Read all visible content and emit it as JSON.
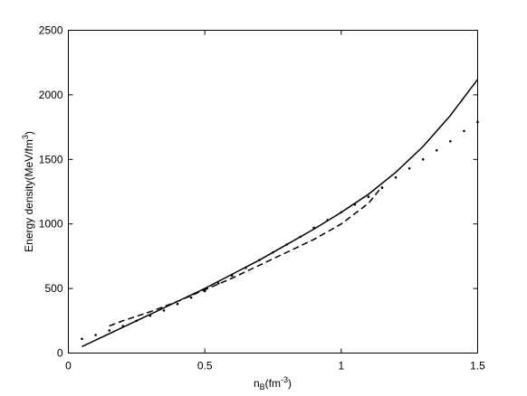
{
  "chart_data": {
    "type": "line",
    "x_label": [
      "n",
      "B",
      "(fm",
      "-3",
      ")"
    ],
    "y_label": [
      "Energy density(MeV/fm",
      "3",
      ")"
    ],
    "xlim": [
      0,
      1.5
    ],
    "xticks": [
      0,
      0.5,
      1,
      1.5
    ],
    "ylim": [
      0,
      2500
    ],
    "yticks": [
      0,
      500,
      1000,
      1500,
      2000,
      2500
    ],
    "series": [
      {
        "style": "solid",
        "color": "#000000",
        "x": [
          0.05,
          0.1,
          0.2,
          0.3,
          0.4,
          0.5,
          0.6,
          0.7,
          0.8,
          0.9,
          1.0,
          1.1,
          1.2,
          1.3,
          1.4,
          1.5
        ],
        "values": [
          50,
          100,
          200,
          300,
          400,
          500,
          610,
          720,
          840,
          960,
          1090,
          1230,
          1400,
          1600,
          1840,
          2120
        ]
      },
      {
        "style": "dashed",
        "color": "#000000",
        "x": [
          0.15,
          0.2,
          0.3,
          0.4,
          0.5,
          0.6,
          0.7,
          0.8,
          0.9,
          1.0,
          1.1,
          1.15
        ],
        "values": [
          210,
          250,
          320,
          400,
          490,
          580,
          680,
          780,
          880,
          1000,
          1160,
          1290
        ]
      },
      {
        "style": "dotted",
        "color": "#000000",
        "x": [
          0.05,
          0.1,
          0.15,
          0.2,
          0.25,
          0.3,
          0.35,
          0.4,
          0.45,
          0.5,
          0.55,
          0.6,
          0.65,
          0.7,
          0.75,
          0.8,
          0.85,
          0.9,
          0.95,
          1.0,
          1.05,
          1.1,
          1.15,
          1.2,
          1.25,
          1.3,
          1.35,
          1.4,
          1.45,
          1.5
        ],
        "values": [
          110,
          140,
          175,
          210,
          250,
          290,
          330,
          380,
          430,
          480,
          540,
          600,
          660,
          720,
          780,
          840,
          900,
          970,
          1030,
          1090,
          1150,
          1210,
          1280,
          1360,
          1430,
          1500,
          1570,
          1640,
          1720,
          1790
        ]
      }
    ]
  }
}
